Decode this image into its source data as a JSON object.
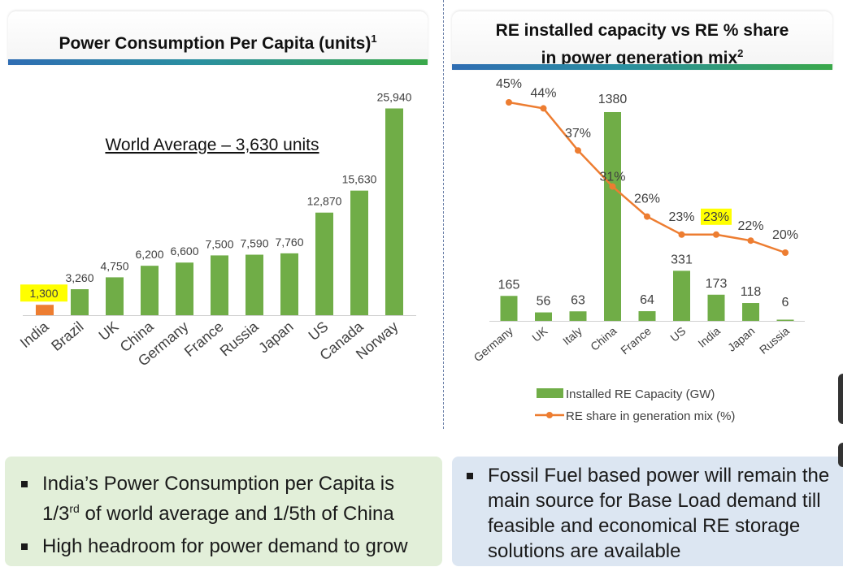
{
  "left_panel": {
    "title": "Power Consumption Per Capita (units)",
    "title_sup": "1",
    "annotation": "World Average – 3,630 units"
  },
  "right_panel": {
    "title_line1": "RE installed capacity vs RE % share",
    "title_line2": "in power generation mix",
    "title_sup": "2"
  },
  "chart_data": [
    {
      "type": "bar",
      "title": "Power Consumption Per Capita (units)",
      "categories": [
        "India",
        "Brazil",
        "UK",
        "China",
        "Germany",
        "France",
        "Russia",
        "Japan",
        "US",
        "Canada",
        "Norway"
      ],
      "values": [
        1300,
        3260,
        4750,
        6200,
        6600,
        7500,
        7590,
        7760,
        12870,
        15630,
        25940
      ],
      "labels": [
        "1,300",
        "3,260",
        "4,750",
        "6,200",
        "6,600",
        "7,500",
        "7,590",
        "7,760",
        "12,870",
        "15,630",
        "25,940"
      ],
      "highlight_category": "India",
      "colors": {
        "default": "#70ad47",
        "highlight": "#ed7d31",
        "label_highlight": "#ffff00"
      },
      "grid": false
    },
    {
      "type": "bar+line",
      "title": "RE installed capacity vs RE % share in power generation mix",
      "categories": [
        "Germany",
        "UK",
        "Italy",
        "China",
        "France",
        "US",
        "India",
        "Japan",
        "Russia"
      ],
      "series": [
        {
          "name": "Installed RE Capacity (GW)",
          "type": "bar",
          "color": "#70ad47",
          "values": [
            165,
            56,
            63,
            1380,
            64,
            331,
            173,
            118,
            6
          ]
        },
        {
          "name": "RE share in generation mix (%)",
          "type": "line",
          "color": "#ed7d31",
          "values": [
            45,
            44,
            37,
            31,
            26,
            23,
            23,
            22,
            20
          ],
          "labels": [
            "45%",
            "44%",
            "37%",
            "31%",
            "26%",
            "23%",
            "23%",
            "22%",
            "20%"
          ]
        }
      ],
      "highlight_label_index": 6,
      "legend_position": "bottom",
      "grid": false
    }
  ],
  "notes": {
    "left": [
      {
        "pre": "India’s Power Consumption per Capita is 1/3",
        "sup": "rd",
        "post": " of world average and 1/5th of China"
      },
      {
        "pre": "High headroom for power demand to grow",
        "sup": "",
        "post": ""
      }
    ],
    "right": [
      {
        "pre": "Fossil Fuel based power will remain the main source for Base Load demand till feasible and economical RE storage solutions are available",
        "sup": "",
        "post": ""
      }
    ]
  }
}
